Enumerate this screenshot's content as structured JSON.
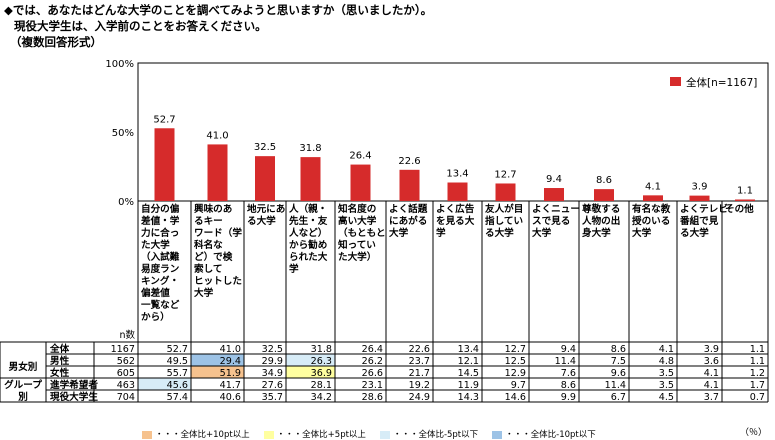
{
  "title": {
    "line1": "◆では、あなたはどんな大学のことを調べてみようと思いますか（思いましたか）。",
    "line2": "現役大学生は、入学前のことをお答えください。",
    "line3": "（複数回答形式）"
  },
  "chart_data": {
    "type": "bar",
    "ylim": [
      0,
      100
    ],
    "yticks": [
      "100%",
      "50%",
      "0%"
    ],
    "legend": "全体[n=1167]",
    "legend_position": "top-right",
    "bar_color": "#d62b2b",
    "categories": [
      "自分の偏差値・学力に合った大学（入試難易度ランキング・偏差値一覧などから）",
      "興味のあるキーワード（学科名など）で検索してヒットした大学",
      "地元にある大学",
      "人（親・先生・友人など）から勧められた大学",
      "知名度の高い大学（もともと知っていた大学）",
      "よく話題にあがる大学",
      "よく広告を見る大学",
      "友人が目指している大学",
      "よくニュースで見る大学",
      "尊敬する人物の出身大学",
      "有名な教授のいる大学",
      "よくテレビ番組で見る大学",
      "その他"
    ],
    "values": [
      52.7,
      41.0,
      32.5,
      31.8,
      26.4,
      22.6,
      13.4,
      12.7,
      9.4,
      8.6,
      4.1,
      3.9,
      1.1
    ],
    "value_labels": [
      "52.7",
      "41.0",
      "32.5",
      "31.8",
      "26.4",
      "22.6",
      "13.4",
      "12.7",
      "9.4",
      "8.6",
      "4.1",
      "3.9",
      "1.1"
    ]
  },
  "category_labels": [
    "自分の偏\n差値・学\n力に合っ\nた大学\n（入試難\n易度ラン\nキング・\n偏差値\n一覧など\nから）",
    "興味のあ\nるキー\nワード（学\n科名な\nど）で検\n索して\nヒットした\n大学",
    "地元にあ\nる大学",
    "人（親・\n先生・友\n人など）\nから勧め\nられた大\n学",
    "知名度の\n高い大学\n（もともと\n知ってい\nた大学）",
    "よく話題\nにあがる\n大学",
    "よく広告\nを見る大\n学",
    "友人が目\n指してい\nる大学",
    "よくニュー\nスで見る\n大学",
    "尊敬する\n人物の出\n身大学",
    "有名な教\n授のいる\n大学",
    "よくテレビ\n番組で見\nる大学",
    "その他"
  ],
  "table": {
    "n_header": "n数",
    "groups": [
      {
        "label": "男女別",
        "rows": [
          1,
          2
        ]
      },
      {
        "label": "グループ\n別",
        "rows": [
          3,
          4
        ]
      }
    ],
    "rows": [
      {
        "label": "全体",
        "n": "1167",
        "values": [
          "52.7",
          "41.0",
          "32.5",
          "31.8",
          "26.4",
          "22.6",
          "13.4",
          "12.7",
          "9.4",
          "8.6",
          "4.1",
          "3.9",
          "1.1"
        ],
        "highlights": [
          "",
          "",
          "",
          "",
          "",
          "",
          "",
          "",
          "",
          "",
          "",
          "",
          ""
        ]
      },
      {
        "label": "男性",
        "n": "562",
        "values": [
          "49.5",
          "29.4",
          "29.9",
          "26.3",
          "26.2",
          "23.7",
          "12.1",
          "12.5",
          "11.4",
          "7.5",
          "4.8",
          "3.6",
          "1.1"
        ],
        "highlights": [
          "",
          "b10",
          "",
          "b5",
          "",
          "",
          "",
          "",
          "",
          "",
          "",
          "",
          ""
        ]
      },
      {
        "label": "女性",
        "n": "605",
        "values": [
          "55.7",
          "51.9",
          "34.9",
          "36.9",
          "26.6",
          "21.7",
          "14.5",
          "12.9",
          "7.6",
          "9.6",
          "3.5",
          "4.1",
          "1.2"
        ],
        "highlights": [
          "",
          "o10",
          "",
          "y5",
          "",
          "",
          "",
          "",
          "",
          "",
          "",
          "",
          ""
        ]
      },
      {
        "label": "進学希望者",
        "n": "463",
        "values": [
          "45.6",
          "41.7",
          "27.6",
          "28.1",
          "23.1",
          "19.2",
          "11.9",
          "9.7",
          "8.6",
          "11.4",
          "3.5",
          "4.1",
          "1.7"
        ],
        "highlights": [
          "b5",
          "",
          "",
          "",
          "",
          "",
          "",
          "",
          "",
          "",
          "",
          "",
          ""
        ]
      },
      {
        "label": "現役大学生",
        "n": "704",
        "values": [
          "57.4",
          "40.6",
          "35.7",
          "34.2",
          "28.6",
          "24.9",
          "14.3",
          "14.6",
          "9.9",
          "6.7",
          "4.5",
          "3.7",
          "0.7"
        ],
        "highlights": [
          "",
          "",
          "",
          "",
          "",
          "",
          "",
          "",
          "",
          "",
          "",
          "",
          ""
        ]
      }
    ]
  },
  "footnote": {
    "items": [
      {
        "key": "o10",
        "label": "・・・全体比+10pt以上",
        "color": "#f6c28e"
      },
      {
        "key": "y5",
        "label": "・・・全体比+5pt以上",
        "color": "#ffffa0"
      },
      {
        "key": "b5",
        "label": "・・・全体比-5pt以下",
        "color": "#d7ecf7"
      },
      {
        "key": "b10",
        "label": "・・・全体比-10pt以下",
        "color": "#9dc3e6"
      }
    ],
    "unit": "（％）"
  }
}
